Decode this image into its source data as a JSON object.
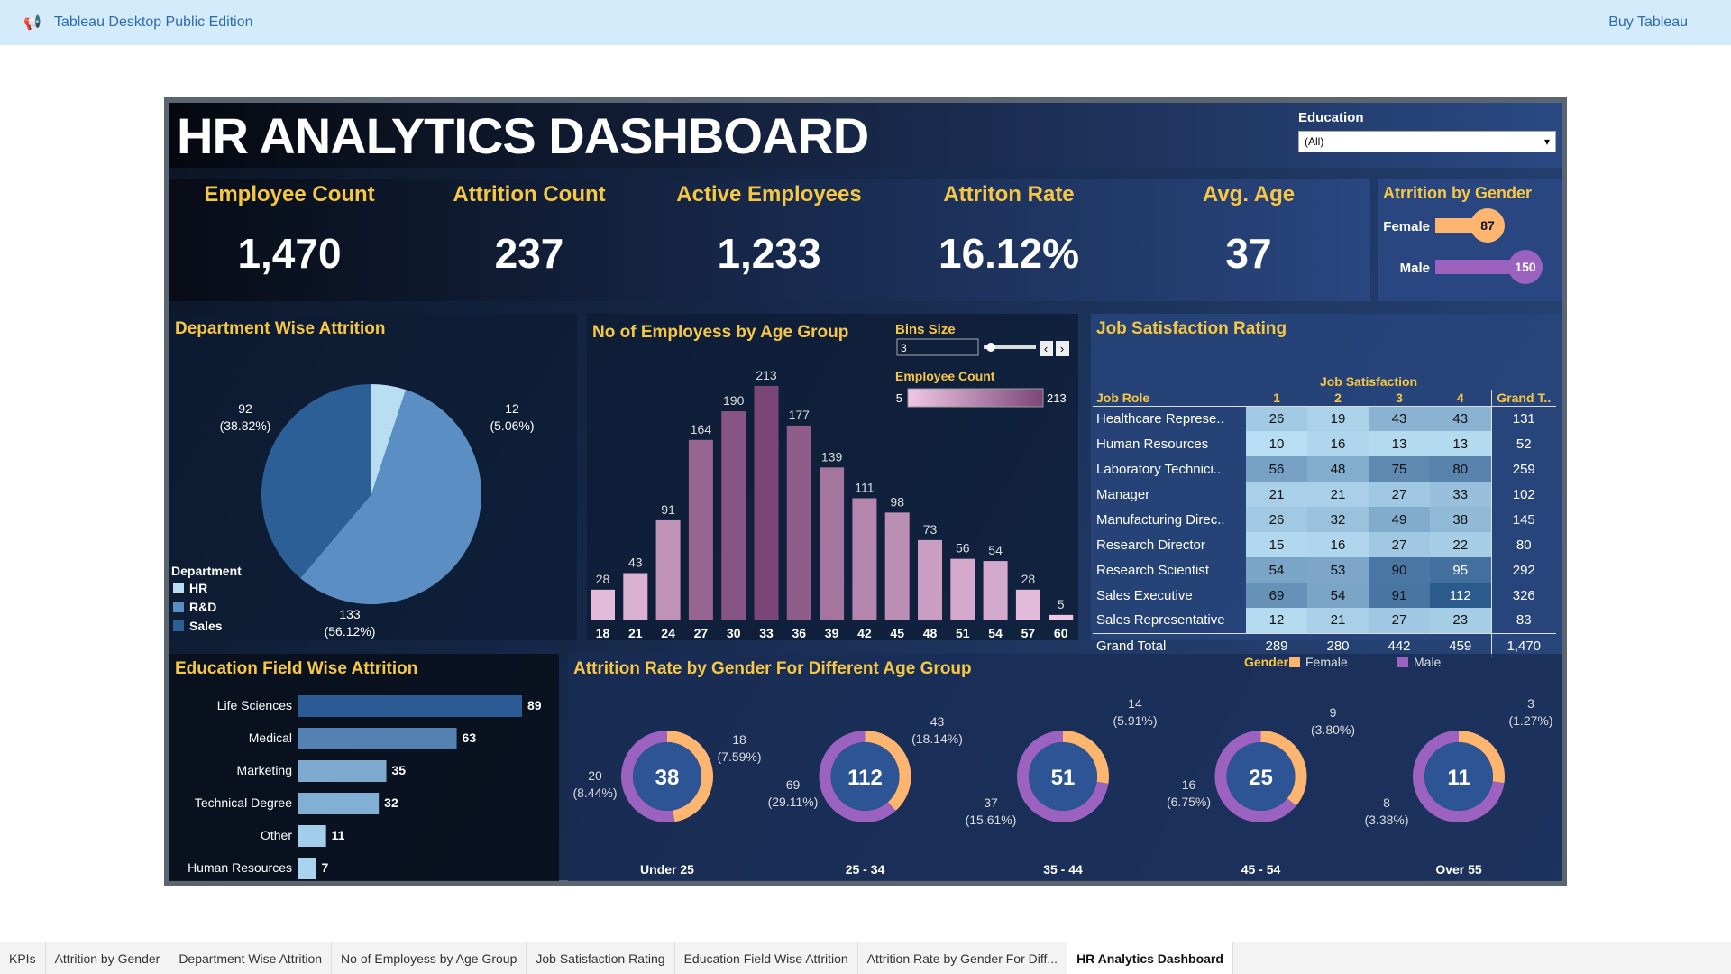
{
  "topbar": {
    "app_title": "Tableau Desktop Public Edition",
    "buy": "Buy Tableau"
  },
  "title": "HR ANALYTICS DASHBOARD",
  "filter": {
    "label": "Education",
    "value": "(All)"
  },
  "kpis": [
    {
      "label": "Employee Count",
      "value": "1,470"
    },
    {
      "label": "Attrition Count",
      "value": "237"
    },
    {
      "label": "Active Employees",
      "value": "1,233"
    },
    {
      "label": "Attriton Rate",
      "value": "16.12%"
    },
    {
      "label": "Avg. Age",
      "value": "37"
    }
  ],
  "gender": {
    "title": "Atrrition by Gender",
    "female_label": "Female",
    "female": 87,
    "male_label": "Male",
    "male": 150,
    "female_color": "#fdb56f",
    "male_color": "#9b62c0"
  },
  "chart_data": [
    {
      "type": "pie",
      "title": "Department Wise Attrition",
      "legend_title": "Department",
      "categories": [
        "HR",
        "R&D",
        "Sales"
      ],
      "values": [
        12,
        133,
        92
      ],
      "labels": [
        "12",
        "133",
        "92"
      ],
      "percents": [
        "(5.06%)",
        "(56.12%)",
        "(38.82%)"
      ],
      "colors": [
        "#b9def2",
        "#5b8fc4",
        "#2c5f95"
      ],
      "legend": "bottom-left"
    },
    {
      "type": "bar",
      "title": "No of Employess by Age Group",
      "categories": [
        "18",
        "21",
        "24",
        "27",
        "30",
        "33",
        "36",
        "39",
        "42",
        "45",
        "48",
        "51",
        "54",
        "57",
        "60"
      ],
      "values": [
        28,
        43,
        91,
        164,
        190,
        213,
        177,
        139,
        111,
        98,
        73,
        56,
        54,
        28,
        5
      ],
      "color_legend": {
        "title": "Employee Count",
        "min": 5,
        "max": 213,
        "min_color": "#f0c8e6",
        "max_color": "#7a4777"
      },
      "bins": {
        "label": "Bins Size",
        "value": "3"
      }
    },
    {
      "type": "table",
      "title": "Job Satisfaction Rating",
      "column_group": "Job Satisfaction",
      "row_header": "Job Role",
      "columns": [
        "1",
        "2",
        "3",
        "4"
      ],
      "total_label": "Grand T..",
      "rows": [
        {
          "role": "Healthcare Represe..",
          "values": [
            26,
            19,
            43,
            43
          ],
          "total": 131
        },
        {
          "role": "Human Resources",
          "values": [
            10,
            16,
            13,
            13
          ],
          "total": 52
        },
        {
          "role": "Laboratory Technici..",
          "values": [
            56,
            48,
            75,
            80
          ],
          "total": 259
        },
        {
          "role": "Manager",
          "values": [
            21,
            21,
            27,
            33
          ],
          "total": 102
        },
        {
          "role": "Manufacturing Direc..",
          "values": [
            26,
            32,
            49,
            38
          ],
          "total": 145
        },
        {
          "role": "Research Director",
          "values": [
            15,
            16,
            27,
            22
          ],
          "total": 80
        },
        {
          "role": "Research Scientist",
          "values": [
            54,
            53,
            90,
            95
          ],
          "total": 292
        },
        {
          "role": "Sales Executive",
          "values": [
            69,
            54,
            91,
            112
          ],
          "total": 326
        },
        {
          "role": "Sales Representative",
          "values": [
            12,
            21,
            27,
            23
          ],
          "total": 83
        }
      ],
      "grand_total": {
        "label": "Grand Total",
        "values": [
          "289",
          "280",
          "442",
          "459"
        ],
        "total": "1,470"
      }
    },
    {
      "type": "bar",
      "orientation": "horizontal",
      "title": "Education Field Wise Attrition",
      "categories": [
        "Life Sciences",
        "Medical",
        "Marketing",
        "Technical Degree",
        "Other",
        "Human Resources"
      ],
      "values": [
        89,
        63,
        35,
        32,
        11,
        7
      ]
    },
    {
      "type": "pie",
      "subtype": "donut",
      "title": "Attrition Rate by Gender For Different Age Group",
      "legend_title": "Gender",
      "series_names": [
        "Female",
        "Male"
      ],
      "colors": [
        "#fdb56f",
        "#9b62c0"
      ],
      "groups": [
        {
          "label": "Under 25",
          "total": 38,
          "female": 18,
          "female_pct": "(7.59%)",
          "male": 20,
          "male_pct": "(8.44%)"
        },
        {
          "label": "25 - 34",
          "total": 112,
          "female": 43,
          "female_pct": "(18.14%)",
          "male": 69,
          "male_pct": "(29.11%)"
        },
        {
          "label": "35 - 44",
          "total": 51,
          "female": 14,
          "female_pct": "(5.91%)",
          "male": 37,
          "male_pct": "(15.61%)"
        },
        {
          "label": "45 - 54",
          "total": 25,
          "female": 9,
          "female_pct": "(3.80%)",
          "male": 16,
          "male_pct": "(6.75%)"
        },
        {
          "label": "Over 55",
          "total": 11,
          "female": 3,
          "female_pct": "(1.27%)",
          "male": 8,
          "male_pct": "(3.38%)"
        }
      ]
    }
  ],
  "tabs": [
    "KPIs",
    "Attrition by Gender",
    "Department Wise Attrition",
    "No of Employess by Age Group",
    "Job Satisfaction Rating",
    "Education Field Wise Attrition",
    "Attrition Rate by Gender For Diff...",
    "HR Analytics Dashboard"
  ]
}
